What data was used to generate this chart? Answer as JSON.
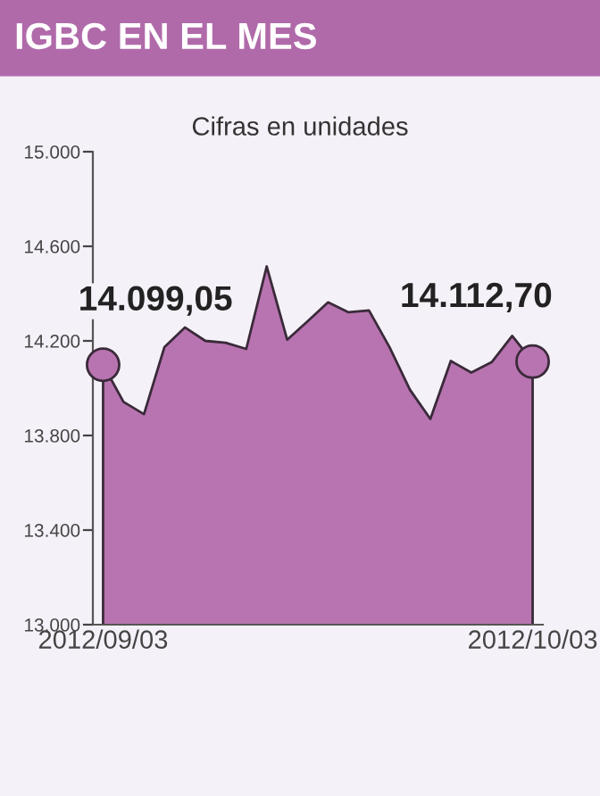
{
  "chart_data": {
    "type": "area",
    "title": "IGBC EN EL MES",
    "subtitle": "Cifras en unidades",
    "categories": [
      "2012/09/03",
      null,
      null,
      null,
      null,
      null,
      null,
      null,
      null,
      null,
      null,
      null,
      null,
      null,
      null,
      null,
      null,
      null,
      null,
      null,
      null,
      "2012/10/03"
    ],
    "series": [
      {
        "color": "#b874b0",
        "values": [
          14099.05,
          13942,
          13890,
          14174,
          14257,
          14200,
          14192,
          14166,
          14515,
          14205,
          14283,
          14363,
          14321,
          14329,
          14174,
          13994,
          13870,
          14115,
          14066,
          14110,
          14221,
          14112.7
        ]
      }
    ],
    "ylim": [
      13000,
      15000
    ],
    "yticks": [
      {
        "value": 13000,
        "label": "13.000"
      },
      {
        "value": 13400,
        "label": "13.400"
      },
      {
        "value": 13800,
        "label": "13.800"
      },
      {
        "value": 14200,
        "label": "14.200"
      },
      {
        "value": 14600,
        "label": "14.600"
      },
      {
        "value": 15000,
        "label": "15.000"
      }
    ],
    "annotations": [
      {
        "text": "14.099,05",
        "x": "2012/09/03",
        "y": 14099.05
      },
      {
        "text": "14.112,70",
        "x": "2012/10/03",
        "y": 14112.7
      }
    ],
    "grid": false,
    "legend": false
  }
}
